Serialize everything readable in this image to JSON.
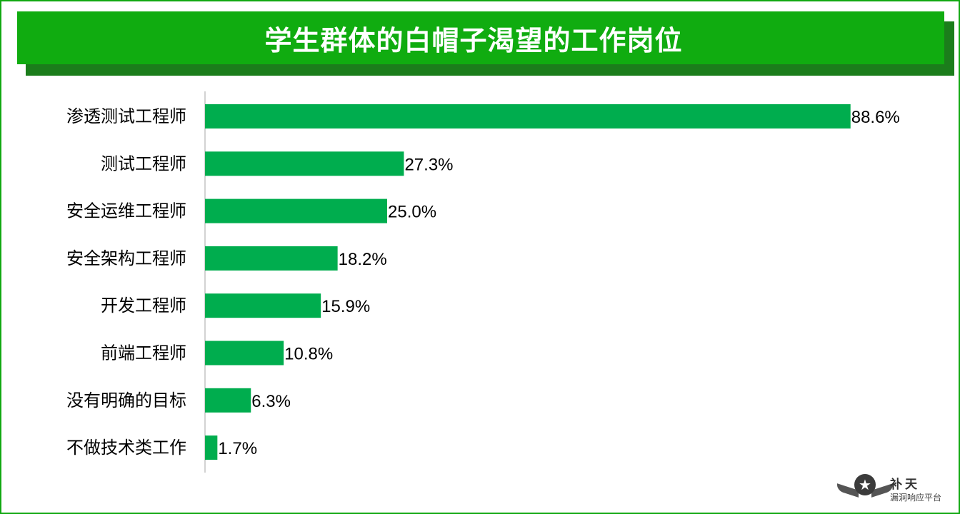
{
  "title": "学生群体的白帽子渴望的工作岗位",
  "chart_data": {
    "type": "bar",
    "orientation": "horizontal",
    "categories": [
      "渗透测试工程师",
      "测试工程师",
      "安全运维工程师",
      "安全架构工程师",
      "开发工程师",
      "前端工程师",
      "没有明确的目标",
      "不做技术类工作"
    ],
    "values": [
      88.6,
      27.3,
      25.0,
      18.2,
      15.9,
      10.8,
      6.3,
      1.7
    ],
    "data_labels": [
      "88.6%",
      "27.3%",
      "25.0%",
      "18.2%",
      "15.9%",
      "10.8%",
      "6.3%",
      "1.7%"
    ],
    "unit": "%",
    "xlim": [
      0,
      100
    ],
    "grid": false,
    "legend": "none",
    "bar_color": "#00ad4e"
  },
  "logo": {
    "name": "补天",
    "subtitle": "漏洞响应平台",
    "icon": "star-icon"
  },
  "colors": {
    "banner": "#10ac10",
    "banner_shadow": "#1b7d1b",
    "frame": "#12a812"
  }
}
